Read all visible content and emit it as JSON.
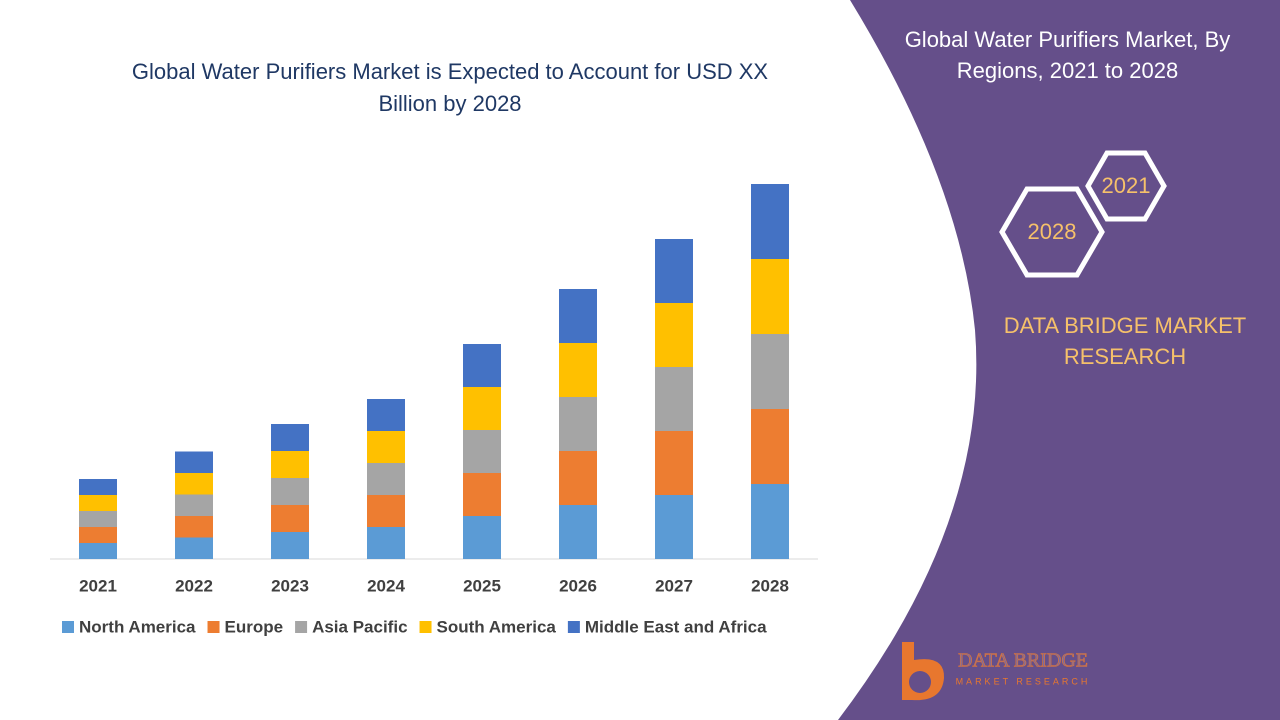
{
  "chart_data": {
    "type": "stacked_bar",
    "title": "Global Water Purifiers Market is Expected to Account for USD XX Billion by 2028",
    "categories": [
      "2021",
      "2022",
      "2023",
      "2024",
      "2025",
      "2026",
      "2027",
      "2028"
    ],
    "series": [
      {
        "name": "North America",
        "color": "#5b9bd5",
        "values": [
          16,
          21.5,
          27,
          32,
          43,
          54,
          64,
          75
        ]
      },
      {
        "name": "Europe",
        "color": "#ed7d31",
        "values": [
          16,
          21.5,
          27,
          32,
          43,
          54,
          64,
          75
        ]
      },
      {
        "name": "Asia Pacific",
        "color": "#a5a5a5",
        "values": [
          16,
          21.5,
          27,
          32,
          43,
          54,
          64,
          75
        ]
      },
      {
        "name": "South America",
        "color": "#ffc000",
        "values": [
          16,
          21.5,
          27,
          32,
          43,
          54,
          64,
          75
        ]
      },
      {
        "name": "Middle East and Africa",
        "color": "#4472c4",
        "values": [
          16,
          21.5,
          27,
          32,
          43,
          54,
          64,
          75
        ]
      }
    ]
  },
  "panel": {
    "title": "Global Water Purifiers Market, By Regions, 2021 to 2028",
    "hex_years": [
      "2021",
      "2028"
    ],
    "brand": "DATA BRIDGE MARKET RESEARCH"
  },
  "logo": {
    "name": "DATA BRIDGE",
    "tagline": "MARKET RESEARCH"
  }
}
